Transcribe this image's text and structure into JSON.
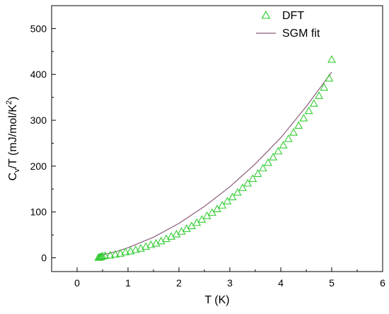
{
  "chart_data": {
    "type": "scatter",
    "title": "",
    "xlabel": "T (K)",
    "ylabel_parts": {
      "main": "C",
      "sub": "v",
      "after": "/T  (mJ/mol/K",
      "sup": "2",
      "close": ")"
    },
    "xlim": [
      -0.5,
      6
    ],
    "ylim": [
      -30,
      550
    ],
    "x_ticks": [
      0,
      1,
      2,
      3,
      4,
      5,
      6
    ],
    "y_ticks": [
      0,
      100,
      200,
      300,
      400,
      500
    ],
    "grid": false,
    "legend_position": "top-right",
    "colors": {
      "dft": "#33cc33",
      "fit": "#8c5c7c",
      "axis": "#000000"
    },
    "series": [
      {
        "name": "DFT",
        "kind": "scatter",
        "marker": "triangle-open",
        "x": [
          0.42,
          0.44,
          0.46,
          0.48,
          0.5,
          0.55,
          0.65,
          0.75,
          0.85,
          0.95,
          1.05,
          1.15,
          1.25,
          1.35,
          1.45,
          1.55,
          1.65,
          1.75,
          1.85,
          1.95,
          2.05,
          2.15,
          2.25,
          2.35,
          2.45,
          2.55,
          2.65,
          2.75,
          2.85,
          2.95,
          3.05,
          3.15,
          3.25,
          3.35,
          3.45,
          3.55,
          3.65,
          3.75,
          3.85,
          3.95,
          4.05,
          4.15,
          4.25,
          4.35,
          4.45,
          4.55,
          4.65,
          4.75,
          4.85,
          4.95,
          5.0
        ],
        "y": [
          0,
          0.5,
          1,
          2,
          3,
          4,
          5,
          7,
          9,
          12,
          14,
          17,
          20,
          24,
          28,
          31,
          36,
          41,
          46,
          51,
          57,
          63,
          69,
          76,
          83,
          91,
          98,
          106,
          114,
          123,
          132,
          142,
          152,
          162,
          172,
          183,
          195,
          207,
          219,
          232,
          245,
          259,
          273,
          288,
          304,
          320,
          336,
          353,
          371,
          391,
          432
        ]
      },
      {
        "name": "SGM fit",
        "kind": "line",
        "x": [
          0.45,
          0.75,
          1.0,
          1.5,
          2.0,
          2.5,
          3.0,
          3.5,
          4.0,
          4.5,
          5.0
        ],
        "y": [
          5,
          13,
          22,
          45,
          75,
          112,
          155,
          205,
          262,
          330,
          405
        ]
      }
    ]
  }
}
